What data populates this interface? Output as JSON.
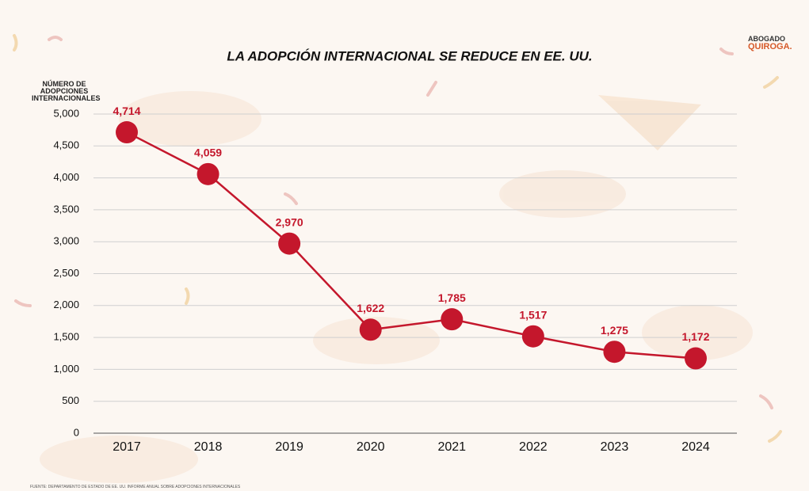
{
  "chart_data": {
    "type": "line",
    "title": "LA ADOPCIÓN INTERNACIONAL SE REDUCE EN EE. UU.",
    "y_label": "NÚMERO DE ADOPCIONES INTERNACIONALES",
    "source": "FUENTE: DEPARTAMENTO DE ESTADO DE EE. UU. INFORME ANUAL SOBRE ADOPCIONES INTERNACIONALES",
    "logo": {
      "line1": "ABOGADO",
      "line2": "QUIROGA."
    },
    "categories": [
      "2017",
      "2018",
      "2019",
      "2020",
      "2021",
      "2022",
      "2023",
      "2024"
    ],
    "values": [
      4714,
      4059,
      2970,
      1622,
      1785,
      1517,
      1275,
      1172
    ],
    "value_labels": [
      "4,714",
      "4,059",
      "2,970",
      "1,622",
      "1,785",
      "1,517",
      "1,275",
      "1,172"
    ],
    "color": "#c4172c",
    "ylim": [
      0,
      5000
    ],
    "yticks": [
      0,
      500,
      {
        "value": 1000,
        "label": "1,000"
      },
      {
        "value": 1500,
        "label": "1,500"
      },
      {
        "value": 2000,
        "label": "2,000"
      },
      {
        "value": 2500,
        "label": "2,500"
      },
      {
        "value": 3000,
        "label": "3,000"
      },
      {
        "value": 3500,
        "label": "3,500"
      },
      {
        "value": 4000,
        "label": "4,000"
      },
      {
        "value": 4500,
        "label": "4,500"
      },
      {
        "value": 5000,
        "label": "5,000"
      }
    ],
    "grid": true
  }
}
